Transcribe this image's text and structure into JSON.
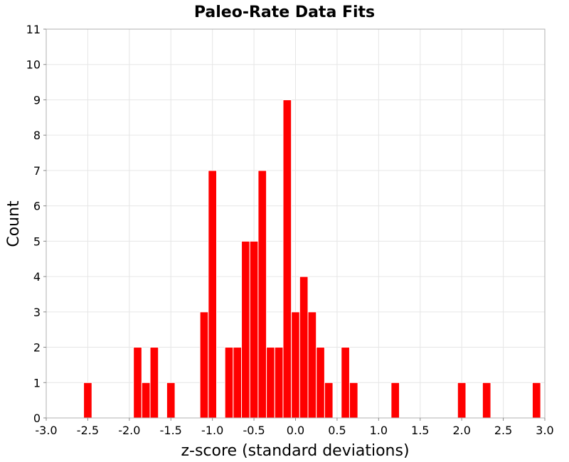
{
  "chart_data": {
    "type": "bar",
    "title": "Paleo-Rate Data Fits",
    "xlabel": "z-score (standard deviations)",
    "ylabel": "Count",
    "xlim": [
      -3.0,
      3.0
    ],
    "ylim": [
      0,
      11
    ],
    "bin_width": 0.1,
    "bar_color": "#ff0000",
    "bar_edge_color": "#ffffff",
    "grid": true,
    "x_ticks": [
      "-3.0",
      "-2.5",
      "-2.0",
      "-1.5",
      "-1.0",
      "-0.5",
      "0.0",
      "0.5",
      "1.0",
      "1.5",
      "2.0",
      "2.5",
      "3.0"
    ],
    "y_ticks": [
      "0",
      "1",
      "2",
      "3",
      "4",
      "5",
      "6",
      "7",
      "8",
      "9",
      "10",
      "11"
    ],
    "bins": [
      {
        "x": -2.5,
        "count": 1
      },
      {
        "x": -1.9,
        "count": 2
      },
      {
        "x": -1.8,
        "count": 1
      },
      {
        "x": -1.7,
        "count": 2
      },
      {
        "x": -1.5,
        "count": 1
      },
      {
        "x": -1.1,
        "count": 3
      },
      {
        "x": -1.0,
        "count": 7
      },
      {
        "x": -0.8,
        "count": 2
      },
      {
        "x": -0.7,
        "count": 2
      },
      {
        "x": -0.6,
        "count": 5
      },
      {
        "x": -0.5,
        "count": 5
      },
      {
        "x": -0.4,
        "count": 7
      },
      {
        "x": -0.3,
        "count": 2
      },
      {
        "x": -0.2,
        "count": 2
      },
      {
        "x": -0.1,
        "count": 9
      },
      {
        "x": 0.0,
        "count": 3
      },
      {
        "x": 0.1,
        "count": 4
      },
      {
        "x": 0.2,
        "count": 3
      },
      {
        "x": 0.3,
        "count": 2
      },
      {
        "x": 0.4,
        "count": 1
      },
      {
        "x": 0.6,
        "count": 2
      },
      {
        "x": 0.7,
        "count": 1
      },
      {
        "x": 1.2,
        "count": 1
      },
      {
        "x": 2.0,
        "count": 1
      },
      {
        "x": 2.3,
        "count": 1
      },
      {
        "x": 2.9,
        "count": 1
      }
    ]
  }
}
